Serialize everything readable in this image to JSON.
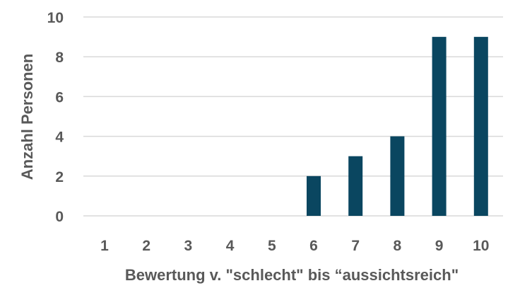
{
  "chart_data": {
    "type": "bar",
    "categories": [
      "1",
      "2",
      "3",
      "4",
      "5",
      "6",
      "7",
      "8",
      "9",
      "10"
    ],
    "values": [
      0,
      0,
      0,
      0,
      0,
      2,
      3,
      4,
      9,
      9
    ],
    "title": "",
    "xlabel": "Bewertung v. \"schlecht\" bis “aussichtsreich\"",
    "ylabel": "Anzahl Personen",
    "ylim": [
      0,
      10
    ],
    "yticks": [
      "0",
      "2",
      "4",
      "6",
      "8",
      "10"
    ],
    "grid": true,
    "legend": "none"
  },
  "colors": {
    "bar": "#0a4660",
    "grid": "#d9d9d9",
    "text": "#595959"
  }
}
